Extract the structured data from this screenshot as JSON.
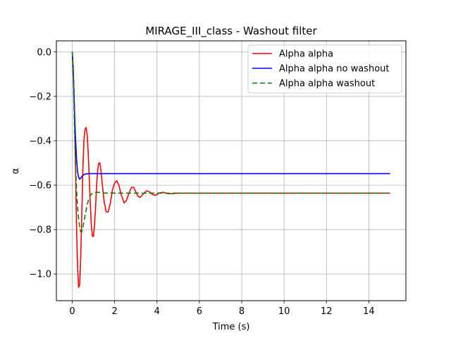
{
  "chart_data": {
    "type": "line",
    "title": "MIRAGE_III_class - Washout filter",
    "xlabel": "Time (s)",
    "ylabel": "α",
    "xlim": [
      -0.75,
      15.75
    ],
    "ylim": [
      -1.12,
      0.05
    ],
    "xticks": [
      0,
      2,
      4,
      6,
      8,
      10,
      12,
      14
    ],
    "yticks": [
      0.0,
      -0.2,
      -0.4,
      -0.6,
      -0.8,
      -1.0
    ],
    "xtick_labels": [
      "0",
      "2",
      "4",
      "6",
      "8",
      "10",
      "12",
      "14"
    ],
    "ytick_labels": [
      "0.0",
      "−0.2",
      "−0.4",
      "−0.6",
      "−0.8",
      "−1.0"
    ],
    "grid": true,
    "legend_position": "top-right",
    "series": [
      {
        "name": "Alpha alpha",
        "color": "#ff0000",
        "style": "solid",
        "points": [
          [
            0,
            0
          ],
          [
            0.05,
            -0.08
          ],
          [
            0.1,
            -0.25
          ],
          [
            0.15,
            -0.5
          ],
          [
            0.2,
            -0.78
          ],
          [
            0.25,
            -0.97
          ],
          [
            0.3,
            -1.06
          ],
          [
            0.35,
            -1.05
          ],
          [
            0.4,
            -0.92
          ],
          [
            0.45,
            -0.73
          ],
          [
            0.5,
            -0.53
          ],
          [
            0.55,
            -0.4
          ],
          [
            0.6,
            -0.35
          ],
          [
            0.65,
            -0.34
          ],
          [
            0.7,
            -0.37
          ],
          [
            0.75,
            -0.45
          ],
          [
            0.8,
            -0.56
          ],
          [
            0.85,
            -0.68
          ],
          [
            0.9,
            -0.78
          ],
          [
            0.95,
            -0.83
          ],
          [
            1.0,
            -0.83
          ],
          [
            1.05,
            -0.78
          ],
          [
            1.1,
            -0.7
          ],
          [
            1.15,
            -0.6
          ],
          [
            1.2,
            -0.53
          ],
          [
            1.25,
            -0.5
          ],
          [
            1.3,
            -0.5
          ],
          [
            1.35,
            -0.53
          ],
          [
            1.4,
            -0.58
          ],
          [
            1.5,
            -0.67
          ],
          [
            1.6,
            -0.72
          ],
          [
            1.7,
            -0.72
          ],
          [
            1.8,
            -0.68
          ],
          [
            1.9,
            -0.62
          ],
          [
            2.0,
            -0.59
          ],
          [
            2.1,
            -0.58
          ],
          [
            2.2,
            -0.6
          ],
          [
            2.3,
            -0.64
          ],
          [
            2.45,
            -0.68
          ],
          [
            2.55,
            -0.67
          ],
          [
            2.7,
            -0.63
          ],
          [
            2.8,
            -0.61
          ],
          [
            2.9,
            -0.61
          ],
          [
            3.0,
            -0.63
          ],
          [
            3.1,
            -0.65
          ],
          [
            3.2,
            -0.655
          ],
          [
            3.35,
            -0.64
          ],
          [
            3.5,
            -0.625
          ],
          [
            3.65,
            -0.63
          ],
          [
            3.8,
            -0.643
          ],
          [
            3.95,
            -0.645
          ],
          [
            4.1,
            -0.635
          ],
          [
            4.3,
            -0.632
          ],
          [
            4.5,
            -0.638
          ],
          [
            4.75,
            -0.638
          ],
          [
            5.0,
            -0.636
          ],
          [
            6.0,
            -0.636
          ],
          [
            8.0,
            -0.636
          ],
          [
            10.0,
            -0.636
          ],
          [
            12.0,
            -0.636
          ],
          [
            15.0,
            -0.636
          ]
        ]
      },
      {
        "name": "Alpha alpha no washout",
        "color": "#0000ff",
        "style": "solid",
        "points": [
          [
            0,
            0
          ],
          [
            0.05,
            -0.1
          ],
          [
            0.1,
            -0.25
          ],
          [
            0.15,
            -0.38
          ],
          [
            0.2,
            -0.48
          ],
          [
            0.25,
            -0.54
          ],
          [
            0.3,
            -0.565
          ],
          [
            0.35,
            -0.573
          ],
          [
            0.4,
            -0.568
          ],
          [
            0.5,
            -0.556
          ],
          [
            0.6,
            -0.55
          ],
          [
            0.8,
            -0.548
          ],
          [
            1.0,
            -0.548
          ],
          [
            2.0,
            -0.548
          ],
          [
            5.0,
            -0.548
          ],
          [
            10.0,
            -0.548
          ],
          [
            15.0,
            -0.548
          ]
        ]
      },
      {
        "name": "Alpha alpha washout",
        "color": "#008000",
        "style": "dashed",
        "points": [
          [
            0,
            0
          ],
          [
            0.05,
            -0.12
          ],
          [
            0.1,
            -0.32
          ],
          [
            0.15,
            -0.5
          ],
          [
            0.2,
            -0.62
          ],
          [
            0.25,
            -0.7
          ],
          [
            0.3,
            -0.75
          ],
          [
            0.35,
            -0.79
          ],
          [
            0.4,
            -0.81
          ],
          [
            0.45,
            -0.81
          ],
          [
            0.5,
            -0.79
          ],
          [
            0.6,
            -0.74
          ],
          [
            0.7,
            -0.69
          ],
          [
            0.8,
            -0.655
          ],
          [
            0.9,
            -0.64
          ],
          [
            1.0,
            -0.634
          ],
          [
            1.2,
            -0.632
          ],
          [
            1.5,
            -0.635
          ],
          [
            2.0,
            -0.636
          ],
          [
            5.0,
            -0.636
          ],
          [
            10.0,
            -0.636
          ],
          [
            15.0,
            -0.636
          ]
        ]
      }
    ]
  }
}
